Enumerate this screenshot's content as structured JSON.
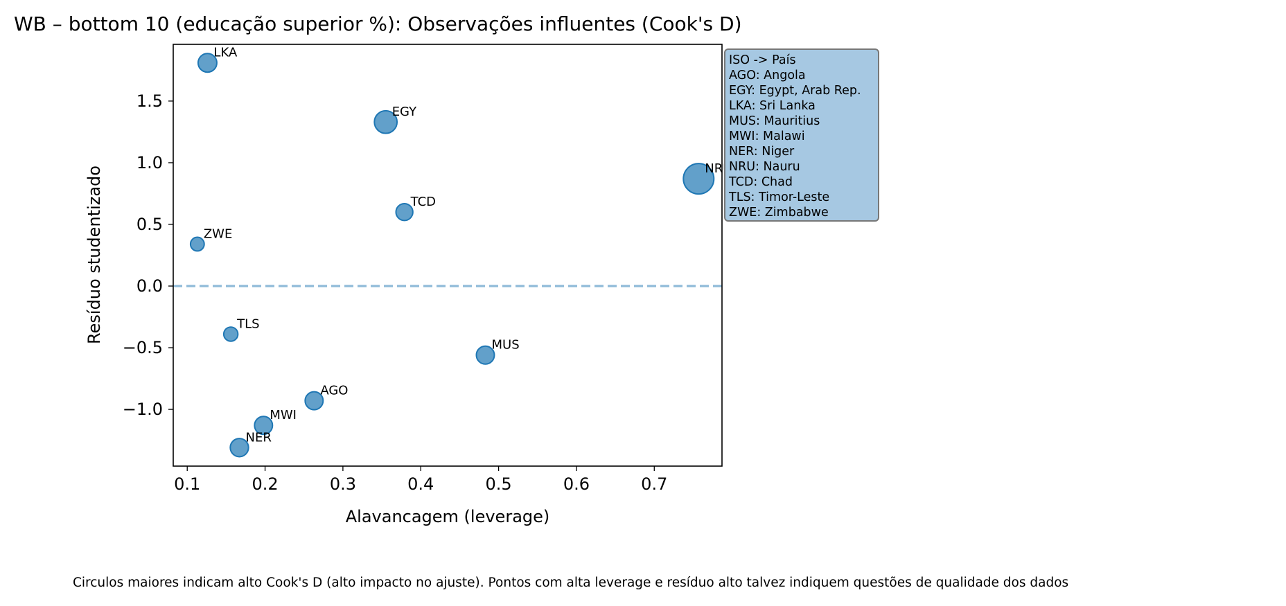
{
  "chart_data": {
    "type": "scatter",
    "title": "WB – bottom 10 (educação superior %): Observações influentes (Cook's D)",
    "xlabel": "Alavancagem (leverage)",
    "ylabel": "Resíduo studentizado",
    "xlim": [
      0.082,
      0.787
    ],
    "ylim": [
      -1.46,
      1.96
    ],
    "x_ticks": [
      0.1,
      0.2,
      0.3,
      0.4,
      0.5,
      0.6,
      0.7
    ],
    "x_tick_labels": [
      "0.1",
      "0.2",
      "0.3",
      "0.4",
      "0.5",
      "0.6",
      "0.7"
    ],
    "y_ticks": [
      -1.0,
      -0.5,
      0.0,
      0.5,
      1.0,
      1.5
    ],
    "y_tick_labels": [
      "−1.0",
      "−0.5",
      "0.0",
      "0.5",
      "1.0",
      "1.5"
    ],
    "reference_line": {
      "y": 0,
      "style": "dashed"
    },
    "grid": false,
    "size_encodes": "Cook's D (relative)",
    "points": [
      {
        "label": "LKA",
        "x": 0.126,
        "y": 1.81,
        "size": 0.22
      },
      {
        "label": "EGY",
        "x": 0.355,
        "y": 1.33,
        "size": 0.42
      },
      {
        "label": "NRU",
        "x": 0.757,
        "y": 0.87,
        "size": 1.0
      },
      {
        "label": "TCD",
        "x": 0.379,
        "y": 0.6,
        "size": 0.15
      },
      {
        "label": "ZWE",
        "x": 0.113,
        "y": 0.34,
        "size": 0.06
      },
      {
        "label": "TLS",
        "x": 0.156,
        "y": -0.39,
        "size": 0.07
      },
      {
        "label": "MUS",
        "x": 0.483,
        "y": -0.56,
        "size": 0.19
      },
      {
        "label": "AGO",
        "x": 0.263,
        "y": -0.93,
        "size": 0.19
      },
      {
        "label": "MWI",
        "x": 0.198,
        "y": -1.13,
        "size": 0.19
      },
      {
        "label": "NER",
        "x": 0.167,
        "y": -1.31,
        "size": 0.2
      }
    ],
    "legend_placement": "right",
    "legend_lines": [
      "ISO -> País",
      "AGO: Angola",
      "EGY: Egypt, Arab Rep.",
      "LKA: Sri Lanka",
      "MUS: Mauritius",
      "MWI: Malawi",
      "NER: Niger",
      "NRU: Nauru",
      "TCD: Chad",
      "TLS: Timor-Leste",
      "ZWE: Zimbabwe"
    ],
    "footnote": "Circulos maiores indicam alto Cook's D (alto impacto no ajuste). Pontos com alta leverage e resíduo alto talvez indiquem questões de qualidade dos dados",
    "colors": {
      "point_fill": "#1f77b4",
      "point_opacity": 0.7,
      "reference_line": "#1f77b4",
      "legend_fill": "#a6c8e2",
      "legend_border": "#777777"
    }
  }
}
